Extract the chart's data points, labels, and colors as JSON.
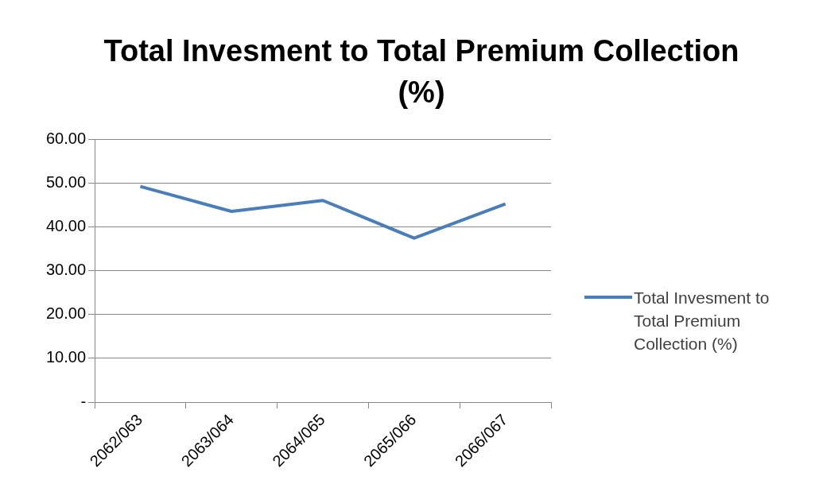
{
  "chart_data": {
    "type": "line",
    "title": "Total Invesment to Total Premium Collection (%)",
    "categories": [
      "2062/063",
      "2063/064",
      "2064/065",
      "2065/066",
      "2066/067"
    ],
    "series": [
      {
        "name": "Total Invesment to Total Premium Collection (%)",
        "color": "#4a7ebb",
        "values": [
          49.2,
          43.5,
          46.0,
          37.4,
          45.2
        ]
      }
    ],
    "ylim": [
      0,
      60
    ],
    "yticks": [
      {
        "value": 0,
        "label": "-"
      },
      {
        "value": 10,
        "label": "10.00"
      },
      {
        "value": 20,
        "label": "20.00"
      },
      {
        "value": 30,
        "label": "30.00"
      },
      {
        "value": 40,
        "label": "40.00"
      },
      {
        "value": 50,
        "label": "50.00"
      },
      {
        "value": 60,
        "label": "60.00"
      }
    ],
    "grid": "y",
    "legend": "right",
    "marker": "none",
    "line_style": "solid"
  }
}
